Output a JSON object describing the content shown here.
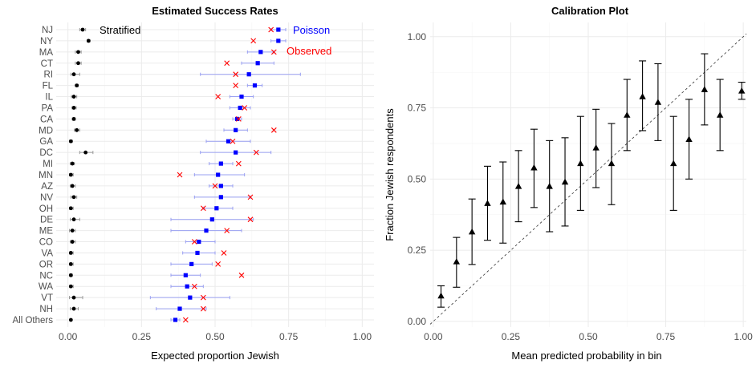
{
  "chart_data": [
    {
      "type": "scatter",
      "title": "Estimated Success Rates",
      "xlabel": "Expected proportion Jewish",
      "ylabel": "",
      "xlim": [
        -0.04,
        1.04
      ],
      "xticks": [
        0.0,
        0.25,
        0.5,
        0.75,
        1.0
      ],
      "xtick_labels": [
        "0.00",
        "0.25",
        "0.50",
        "0.75",
        "1.00"
      ],
      "grid": true,
      "categories": [
        "NJ",
        "NY",
        "MA",
        "CT",
        "RI",
        "FL",
        "IL",
        "PA",
        "CA",
        "MD",
        "GA",
        "DC",
        "MI",
        "MN",
        "AZ",
        "NV",
        "OH",
        "DE",
        "ME",
        "CO",
        "VA",
        "OR",
        "NC",
        "WA",
        "VT",
        "NH",
        "All Others"
      ],
      "series": [
        {
          "name": "Stratified",
          "color": "#000000",
          "marker": "circle",
          "values": [
            0.05,
            0.07,
            0.035,
            0.035,
            0.02,
            0.03,
            0.02,
            0.02,
            0.02,
            0.03,
            0.01,
            0.06,
            0.015,
            0.01,
            0.015,
            0.02,
            0.01,
            0.02,
            0.015,
            0.015,
            0.01,
            0.01,
            0.01,
            0.01,
            0.02,
            0.02,
            0.01
          ],
          "lower": [
            0.04,
            0.065,
            0.025,
            0.025,
            0.01,
            0.025,
            0.012,
            0.014,
            0.015,
            0.022,
            0.005,
            0.04,
            0.008,
            0.005,
            0.008,
            0.01,
            0.005,
            0.008,
            0.005,
            0.008,
            0.005,
            0.005,
            0.005,
            0.005,
            0.005,
            0.008,
            0.008
          ],
          "upper": [
            0.06,
            0.075,
            0.045,
            0.045,
            0.04,
            0.035,
            0.03,
            0.028,
            0.025,
            0.04,
            0.015,
            0.085,
            0.022,
            0.018,
            0.025,
            0.03,
            0.018,
            0.04,
            0.025,
            0.025,
            0.018,
            0.018,
            0.015,
            0.018,
            0.05,
            0.035,
            0.012
          ]
        },
        {
          "name": "Poisson",
          "color": "#0000ff",
          "marker": "square",
          "values": [
            0.715,
            0.715,
            0.655,
            0.645,
            0.615,
            0.635,
            0.59,
            0.585,
            0.575,
            0.57,
            0.545,
            0.57,
            0.52,
            0.51,
            0.52,
            0.52,
            0.505,
            0.49,
            0.47,
            0.445,
            0.44,
            0.42,
            0.4,
            0.405,
            0.415,
            0.38,
            0.365
          ],
          "lower": [
            0.69,
            0.69,
            0.61,
            0.59,
            0.45,
            0.61,
            0.55,
            0.55,
            0.56,
            0.53,
            0.47,
            0.45,
            0.48,
            0.43,
            0.48,
            0.43,
            0.46,
            0.35,
            0.35,
            0.4,
            0.39,
            0.35,
            0.35,
            0.35,
            0.28,
            0.3,
            0.35
          ],
          "upper": [
            0.74,
            0.74,
            0.7,
            0.7,
            0.79,
            0.66,
            0.63,
            0.62,
            0.59,
            0.61,
            0.62,
            0.69,
            0.56,
            0.6,
            0.56,
            0.62,
            0.56,
            0.63,
            0.59,
            0.5,
            0.5,
            0.49,
            0.45,
            0.46,
            0.55,
            0.47,
            0.38
          ]
        },
        {
          "name": "Observed",
          "color": "#ff0000",
          "marker": "x",
          "values": [
            0.69,
            0.63,
            0.7,
            0.54,
            0.57,
            0.57,
            0.51,
            0.6,
            0.58,
            0.7,
            0.56,
            0.64,
            0.58,
            0.38,
            0.5,
            0.62,
            0.46,
            0.62,
            0.54,
            0.43,
            0.53,
            0.51,
            0.59,
            0.43,
            0.46,
            0.46,
            0.4
          ]
        }
      ]
    },
    {
      "type": "scatter",
      "title": "Calibration Plot",
      "xlabel": "Mean predicted probability in bin",
      "ylabel": "Fraction Jewish respondents",
      "xlim": [
        -0.01,
        1.01
      ],
      "ylim": [
        -0.02,
        1.05
      ],
      "xticks": [
        0.0,
        0.25,
        0.5,
        0.75,
        1.0
      ],
      "xtick_labels": [
        "0.00",
        "0.25",
        "0.50",
        "0.75",
        "1.00"
      ],
      "yticks": [
        0.0,
        0.25,
        0.5,
        0.75,
        1.0
      ],
      "ytick_labels": [
        "0.00",
        "0.25",
        "0.50",
        "0.75",
        "1.00"
      ],
      "grid": true,
      "reference_line": "y = x (dashed)",
      "points": {
        "x": [
          0.025,
          0.075,
          0.125,
          0.175,
          0.225,
          0.275,
          0.325,
          0.375,
          0.425,
          0.475,
          0.525,
          0.575,
          0.625,
          0.675,
          0.725,
          0.775,
          0.825,
          0.875,
          0.925,
          0.995
        ],
        "y": [
          0.09,
          0.21,
          0.315,
          0.415,
          0.42,
          0.475,
          0.54,
          0.475,
          0.49,
          0.555,
          0.61,
          0.555,
          0.725,
          0.79,
          0.77,
          0.555,
          0.64,
          0.815,
          0.725,
          0.81
        ],
        "lower": [
          0.05,
          0.12,
          0.2,
          0.285,
          0.275,
          0.35,
          0.4,
          0.315,
          0.335,
          0.39,
          0.47,
          0.41,
          0.6,
          0.67,
          0.635,
          0.39,
          0.5,
          0.69,
          0.6,
          0.78
        ],
        "upper": [
          0.125,
          0.295,
          0.43,
          0.545,
          0.56,
          0.6,
          0.675,
          0.635,
          0.645,
          0.72,
          0.745,
          0.695,
          0.85,
          0.915,
          0.905,
          0.72,
          0.78,
          0.94,
          0.85,
          0.84
        ]
      }
    }
  ]
}
